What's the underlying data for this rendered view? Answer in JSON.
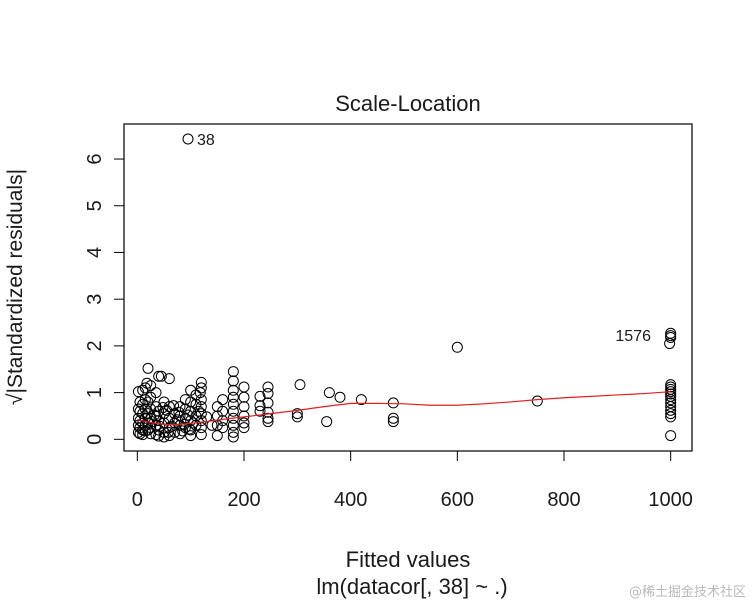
{
  "chart_data": {
    "type": "scatter",
    "title": "Scale-Location",
    "xlabel": "Fitted values",
    "sublabel": "lm(datacor[, 38] ~ .)",
    "ylabel": "√|Standardized residuals|",
    "xlim": [
      -25,
      1040
    ],
    "ylim": [
      -0.25,
      6.75
    ],
    "x_ticks": [
      0,
      200,
      400,
      600,
      800,
      1000
    ],
    "y_ticks": [
      0,
      1,
      2,
      3,
      4,
      5,
      6
    ],
    "points": [
      [
        95,
        6.43
      ],
      [
        600,
        1.97
      ],
      [
        750,
        0.82
      ],
      [
        480,
        0.78
      ],
      [
        480,
        0.45
      ],
      [
        480,
        0.38
      ],
      [
        420,
        0.85
      ],
      [
        380,
        0.9
      ],
      [
        360,
        1.0
      ],
      [
        355,
        0.38
      ],
      [
        305,
        1.17
      ],
      [
        300,
        0.55
      ],
      [
        300,
        0.48
      ],
      [
        245,
        1.12
      ],
      [
        245,
        0.98
      ],
      [
        245,
        0.78
      ],
      [
        245,
        0.58
      ],
      [
        245,
        0.45
      ],
      [
        245,
        0.38
      ],
      [
        230,
        0.92
      ],
      [
        230,
        0.72
      ],
      [
        230,
        0.6
      ],
      [
        200,
        1.12
      ],
      [
        200,
        0.9
      ],
      [
        200,
        0.7
      ],
      [
        200,
        0.5
      ],
      [
        200,
        0.35
      ],
      [
        200,
        0.25
      ],
      [
        180,
        1.45
      ],
      [
        180,
        1.25
      ],
      [
        180,
        1.05
      ],
      [
        180,
        0.9
      ],
      [
        180,
        0.75
      ],
      [
        180,
        0.6
      ],
      [
        180,
        0.45
      ],
      [
        180,
        0.3
      ],
      [
        180,
        0.15
      ],
      [
        180,
        0.05
      ],
      [
        160,
        0.85
      ],
      [
        160,
        0.6
      ],
      [
        160,
        0.4
      ],
      [
        160,
        0.25
      ],
      [
        150,
        0.7
      ],
      [
        150,
        0.5
      ],
      [
        150,
        0.3
      ],
      [
        150,
        0.08
      ],
      [
        120,
        1.22
      ],
      [
        120,
        1.1
      ],
      [
        118,
        1.0
      ],
      [
        120,
        0.85
      ],
      [
        120,
        0.7
      ],
      [
        120,
        0.55
      ],
      [
        120,
        0.4
      ],
      [
        120,
        0.25
      ],
      [
        120,
        0.1
      ],
      [
        110,
        0.95
      ],
      [
        110,
        0.75
      ],
      [
        110,
        0.5
      ],
      [
        110,
        0.3
      ],
      [
        100,
        1.05
      ],
      [
        100,
        0.8
      ],
      [
        100,
        0.6
      ],
      [
        100,
        0.4
      ],
      [
        100,
        0.2
      ],
      [
        100,
        0.08
      ],
      [
        90,
        0.85
      ],
      [
        90,
        0.65
      ],
      [
        90,
        0.45
      ],
      [
        90,
        0.25
      ],
      [
        80,
        0.7
      ],
      [
        80,
        0.5
      ],
      [
        80,
        0.3
      ],
      [
        80,
        0.12
      ],
      [
        70,
        0.55
      ],
      [
        70,
        0.35
      ],
      [
        70,
        0.15
      ],
      [
        60,
        1.3
      ],
      [
        60,
        0.7
      ],
      [
        60,
        0.45
      ],
      [
        60,
        0.25
      ],
      [
        60,
        0.08
      ],
      [
        50,
        0.8
      ],
      [
        50,
        0.55
      ],
      [
        50,
        0.35
      ],
      [
        50,
        0.15
      ],
      [
        50,
        0.05
      ],
      [
        45,
        1.35
      ],
      [
        40,
        1.35
      ],
      [
        40,
        0.6
      ],
      [
        40,
        0.4
      ],
      [
        40,
        0.2
      ],
      [
        40,
        0.07
      ],
      [
        35,
        1.0
      ],
      [
        35,
        0.7
      ],
      [
        35,
        0.5
      ],
      [
        35,
        0.3
      ],
      [
        35,
        0.1
      ],
      [
        25,
        1.15
      ],
      [
        25,
        0.9
      ],
      [
        25,
        0.65
      ],
      [
        25,
        0.45
      ],
      [
        25,
        0.25
      ],
      [
        25,
        0.12
      ],
      [
        20,
        1.52
      ],
      [
        18,
        1.2
      ],
      [
        20,
        0.8
      ],
      [
        20,
        0.55
      ],
      [
        20,
        0.35
      ],
      [
        20,
        0.2
      ],
      [
        15,
        1.1
      ],
      [
        15,
        0.85
      ],
      [
        15,
        0.65
      ],
      [
        15,
        0.45
      ],
      [
        15,
        0.3
      ],
      [
        15,
        0.18
      ],
      [
        10,
        1.05
      ],
      [
        10,
        0.75
      ],
      [
        10,
        0.55
      ],
      [
        10,
        0.35
      ],
      [
        10,
        0.2
      ],
      [
        10,
        0.1
      ],
      [
        5,
        0.8
      ],
      [
        5,
        0.6
      ],
      [
        5,
        0.4
      ],
      [
        5,
        0.25
      ],
      [
        5,
        0.12
      ],
      [
        2,
        1.02
      ],
      [
        2,
        0.65
      ],
      [
        2,
        0.45
      ],
      [
        2,
        0.3
      ],
      [
        2,
        0.15
      ],
      [
        55,
        0.62
      ],
      [
        65,
        0.28
      ],
      [
        75,
        0.42
      ],
      [
        85,
        0.18
      ],
      [
        95,
        0.52
      ],
      [
        105,
        0.35
      ],
      [
        115,
        0.6
      ],
      [
        130,
        0.48
      ],
      [
        140,
        0.3
      ],
      [
        28,
        0.38
      ],
      [
        32,
        0.52
      ],
      [
        42,
        0.28
      ],
      [
        48,
        0.68
      ],
      [
        58,
        0.15
      ],
      [
        68,
        0.72
      ],
      [
        78,
        0.58
      ],
      [
        88,
        0.32
      ],
      [
        98,
        0.22
      ],
      [
        1000,
        2.27
      ],
      [
        1000,
        2.22
      ],
      [
        1000,
        2.18
      ],
      [
        998,
        2.05
      ],
      [
        1000,
        1.17
      ],
      [
        1000,
        1.12
      ],
      [
        1000,
        1.07
      ],
      [
        1000,
        1.02
      ],
      [
        1000,
        0.97
      ],
      [
        1000,
        0.92
      ],
      [
        1000,
        0.85
      ],
      [
        1000,
        0.78
      ],
      [
        1000,
        0.7
      ],
      [
        1000,
        0.62
      ],
      [
        1000,
        0.55
      ],
      [
        1000,
        0.48
      ],
      [
        1000,
        0.08
      ]
    ],
    "smooth_line": [
      [
        0,
        0.42
      ],
      [
        30,
        0.35
      ],
      [
        60,
        0.31
      ],
      [
        90,
        0.33
      ],
      [
        130,
        0.38
      ],
      [
        170,
        0.44
      ],
      [
        200,
        0.48
      ],
      [
        250,
        0.55
      ],
      [
        300,
        0.62
      ],
      [
        350,
        0.7
      ],
      [
        400,
        0.77
      ],
      [
        450,
        0.77
      ],
      [
        500,
        0.76
      ],
      [
        550,
        0.73
      ],
      [
        600,
        0.73
      ],
      [
        650,
        0.76
      ],
      [
        700,
        0.8
      ],
      [
        750,
        0.85
      ],
      [
        800,
        0.89
      ],
      [
        850,
        0.92
      ],
      [
        900,
        0.95
      ],
      [
        950,
        0.98
      ],
      [
        1000,
        1.02
      ]
    ],
    "smooth_color": "#e02020",
    "point_labels": [
      {
        "text": "38",
        "x": 95,
        "y": 6.43,
        "side": "right"
      },
      {
        "text": "1576",
        "x": 980,
        "y": 2.23,
        "side": "left"
      }
    ]
  },
  "watermark": "@稀土掘金技术社区"
}
